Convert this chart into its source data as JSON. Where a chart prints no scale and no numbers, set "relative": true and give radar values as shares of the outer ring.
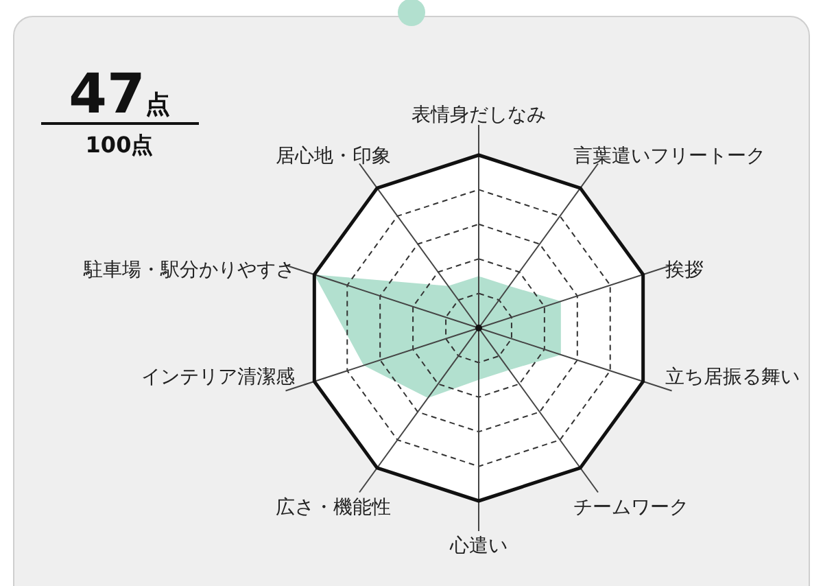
{
  "chart_data": {
    "type": "radar",
    "relative": true,
    "grid": true,
    "categories": [
      "表情身だしなみ",
      "言葉遣いフリートーク",
      "挨拶",
      "立ち居振る舞い",
      "チームワーク",
      "心遣い",
      "広さ・機能性",
      "インテリア清潔感",
      "駐車場・駅分かりやすさ",
      "居心地・印象"
    ],
    "series": [
      {
        "color": "#b2e0cf",
        "values": [
          0.3,
          0.3,
          0.5,
          0.5,
          0.3,
          0.3,
          0.5,
          0.7,
          1,
          0.3
        ]
      }
    ],
    "annotations": [
      "47点",
      "100点"
    ]
  }
}
